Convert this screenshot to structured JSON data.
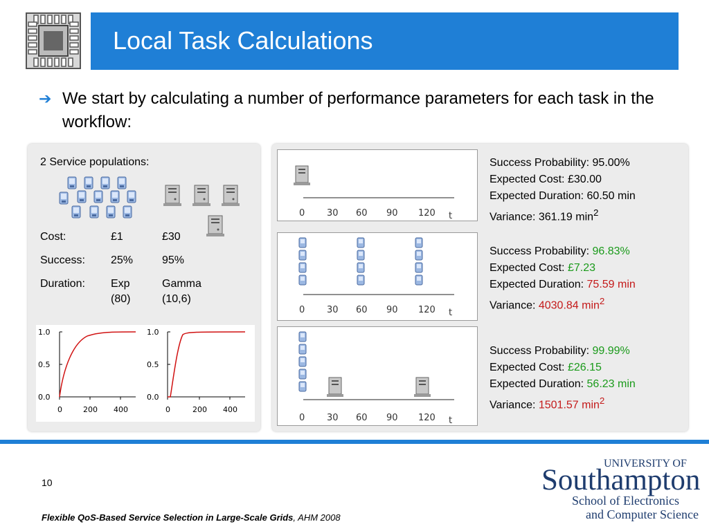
{
  "slide": {
    "title": "Local Task Calculations",
    "bullet": "We start by calculating a number of performance parameters for each task in the workflow:",
    "page_number": "10",
    "footer_title": "Flexible QoS-Based Service Selection in Large-Scale Grids",
    "footer_venue": ", AHM 2008",
    "accent_color": "#1f7fd6"
  },
  "left_panel": {
    "heading": "2 Service populations:",
    "table": {
      "rows": [
        {
          "label": "Cost:",
          "a": "£1",
          "b": "£30"
        },
        {
          "label": "Success:",
          "a": "25%",
          "b": "95%"
        },
        {
          "label": "Duration:",
          "a": "Exp",
          "b": "Gamma"
        }
      ],
      "params_a": "(80)",
      "params_b": "(10,6)"
    },
    "icons": {
      "pda": "pda-icon",
      "server": "server-icon"
    },
    "cdf_plots": {
      "y_ticks": [
        "1.0",
        "0.5",
        "0.0"
      ],
      "x_ticks": [
        "0",
        "200",
        "400"
      ]
    }
  },
  "timelines": {
    "x_ticks": [
      "0",
      "30",
      "60",
      "90",
      "120"
    ],
    "axis_label": "t",
    "items": [
      {
        "success_label": "Success Probability: ",
        "success_value": "95.00%",
        "cost_label": "Expected Cost: ",
        "cost_value": "£30.00",
        "duration_label": "Expected Duration: ",
        "duration_value": "60.50 min",
        "variance_label": "Variance: ",
        "variance_value": "361.19 min",
        "variance_sup": "2"
      },
      {
        "success_label": "Success Probability: ",
        "success_value": "96.83%",
        "cost_label": "Expected Cost: ",
        "cost_value": "£7.23",
        "duration_label": "Expected Duration: ",
        "duration_value": "75.59 min",
        "variance_label": "Variance: ",
        "variance_value": "4030.84 min",
        "variance_sup": "2"
      },
      {
        "success_label": "Success Probability: ",
        "success_value": "99.99%",
        "cost_label": "Expected Cost: ",
        "cost_value": "£26.15",
        "duration_label": "Expected Duration: ",
        "duration_value": "56.23 min",
        "variance_label": "Variance: ",
        "variance_value": "1501.57 min",
        "variance_sup": "2"
      }
    ]
  },
  "logo": {
    "university_of": "UNIVERSITY OF",
    "university_name": "Southampton",
    "school_line1": "School of Electronics",
    "school_line2": "and Computer Science"
  }
}
